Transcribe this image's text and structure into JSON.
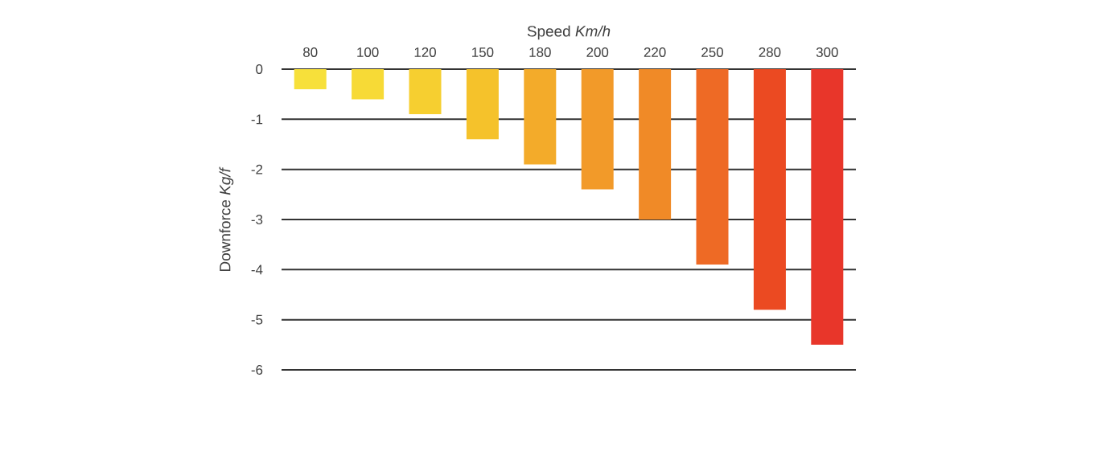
{
  "chart_data": {
    "type": "bar",
    "xlabel": "Speed *Km/h*",
    "ylabel": "Downforce *Kg/f*",
    "categories": [
      "80",
      "100",
      "120",
      "150",
      "180",
      "200",
      "220",
      "250",
      "280",
      "300"
    ],
    "values": [
      -0.4,
      -0.6,
      -0.9,
      -1.4,
      -1.9,
      -2.4,
      -3.0,
      -3.9,
      -4.8,
      -5.5
    ],
    "colors": [
      "#f7e03a",
      "#f7da36",
      "#f6cf30",
      "#f5c22b",
      "#f3ab2a",
      "#f29a29",
      "#f08a27",
      "#ee6a25",
      "#eb4a22",
      "#e8362a"
    ],
    "ylim": [
      -6,
      0
    ],
    "yticks": [
      0,
      -1,
      -2,
      -3,
      -4,
      -5,
      -6
    ],
    "grid": "y"
  }
}
